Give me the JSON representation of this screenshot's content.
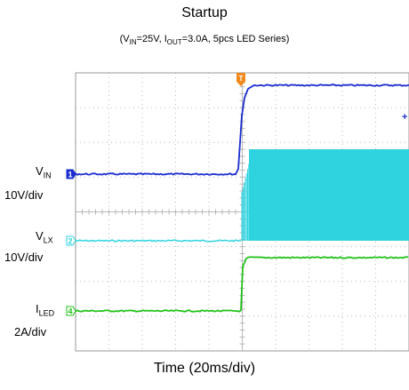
{
  "chart_data": {
    "type": "line",
    "title": "Startup",
    "subtitle": {
      "open": "(V",
      "vin_sub": "IN",
      "mid": "=25V, I",
      "iout_sub": "OUT",
      "close": "=3.0A, 5pcs LED Series)"
    },
    "xlabel": "Time (20ms/div)",
    "grid": true,
    "trigger_marker": "T",
    "channels": [
      {
        "marker": "1",
        "main": "V",
        "sub": "IN",
        "scale": "10V/div",
        "color": "#1a2ccf"
      },
      {
        "marker": "2",
        "main": "V",
        "sub": "LX",
        "scale": "10V/div",
        "color": "#2fd3e0"
      },
      {
        "marker": "4",
        "main": "I",
        "sub": "LED",
        "scale": "2A/div",
        "color": "#22c21a"
      }
    ]
  }
}
